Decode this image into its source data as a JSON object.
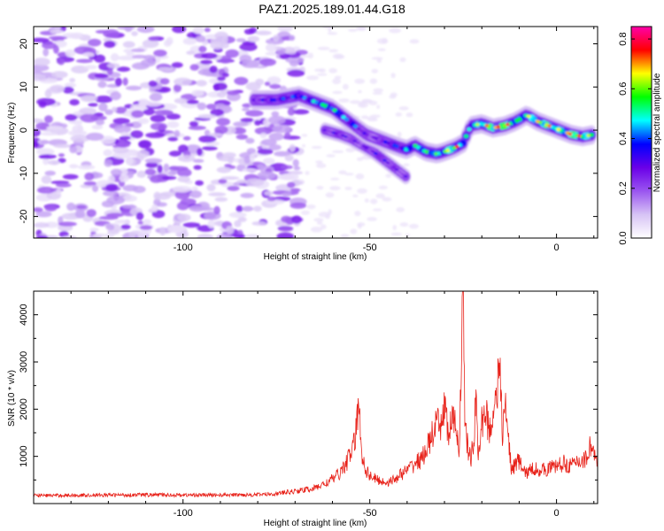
{
  "title": "PAZ1.2025.189.01.44.G18",
  "chart_data": [
    {
      "type": "heatmap",
      "xlabel": "Height of straight line (km)",
      "ylabel": "Frequency (Hz)",
      "xlim": [
        -140,
        11
      ],
      "ylim": [
        -25,
        24
      ],
      "xticks": [
        -100,
        -50,
        0
      ],
      "yticks": [
        -20,
        -10,
        0,
        10,
        20
      ],
      "xtick_labels": [
        "-100",
        "-50",
        "0"
      ],
      "ytick_labels": [
        "-20",
        "-10",
        "0",
        "10",
        "20"
      ],
      "colorbar": {
        "label": "Normalized spectral amplitude",
        "range": [
          0.0,
          0.85
        ],
        "ticks": [
          0.0,
          0.2,
          0.4,
          0.6,
          0.8
        ],
        "tick_labels": [
          "0.0",
          "0.2",
          "0.4",
          "0.6",
          "0.8"
        ],
        "colors": [
          "#ffffff",
          "#d7c3f5",
          "#9a55f0",
          "#6a00e8",
          "#0000ff",
          "#00ffff",
          "#00ff00",
          "#ffff00",
          "#ff0000",
          "#ff00aa"
        ]
      },
      "noise_region": {
        "x": [
          -140,
          -68
        ],
        "y": [
          -25,
          24
        ]
      },
      "ridge": {
        "x": [
          -81,
          -78,
          -75,
          -72,
          -69,
          -66,
          -63,
          -60,
          -57,
          -54,
          -51,
          -48,
          -45,
          -42,
          -40,
          -38,
          -35,
          -32,
          -30,
          -27,
          -25,
          -23,
          -20,
          -17,
          -14,
          -11,
          -8,
          -5,
          -2,
          1,
          4,
          7,
          10
        ],
        "y": [
          7,
          7,
          7,
          7.5,
          8,
          7,
          6,
          5,
          3,
          1,
          -1,
          -2,
          -3,
          -4,
          -4.5,
          -3.5,
          -5,
          -5.5,
          -5,
          -4,
          -3,
          1,
          1.5,
          0.5,
          1,
          2,
          3.5,
          2,
          1,
          0,
          -1,
          -1.5,
          -1
        ],
        "amplitude": [
          0.3,
          0.35,
          0.4,
          0.42,
          0.45,
          0.45,
          0.6,
          0.55,
          0.5,
          0.45,
          0.3,
          0.3,
          0.4,
          0.45,
          0.5,
          0.55,
          0.6,
          0.6,
          0.65,
          0.8,
          0.55,
          0.55,
          0.7,
          0.75,
          0.85,
          0.6,
          0.65,
          0.7,
          0.75,
          0.65,
          0.8,
          0.75,
          0.6
        ]
      },
      "branch": {
        "x": [
          -62,
          -58,
          -55,
          -52,
          -49,
          -46,
          -43,
          -40
        ],
        "y": [
          0,
          -1,
          -2,
          -3.5,
          -5,
          -7,
          -9,
          -11
        ],
        "amplitude": [
          0.3,
          0.35,
          0.3,
          0.3,
          0.35,
          0.35,
          0.3,
          0.3
        ]
      }
    },
    {
      "type": "line",
      "xlabel": "Height of straight line (km)",
      "ylabel": "SNR (10 * v/v)",
      "xlim": [
        -140,
        11
      ],
      "ylim": [
        0,
        4500
      ],
      "xticks": [
        -100,
        -50,
        0
      ],
      "yticks": [
        1000,
        2000,
        3000,
        4000
      ],
      "xtick_labels": [
        "-100",
        "-50",
        "0"
      ],
      "ytick_labels": [
        "1000",
        "2000",
        "3000",
        "4000"
      ],
      "color": "#e8221a",
      "series": [
        {
          "x": [
            -140,
            -130,
            -120,
            -110,
            -100,
            -90,
            -80,
            -75,
            -70,
            -65,
            -62,
            -60,
            -58,
            -56,
            -55,
            -54,
            -53,
            -52,
            -51,
            -50,
            -48,
            -46,
            -44,
            -42,
            -40,
            -38,
            -36,
            -34,
            -32,
            -31,
            -30,
            -29,
            -28,
            -27,
            -26,
            -25.5,
            -25,
            -24.5,
            -24,
            -23,
            -22,
            -21.5,
            -21,
            -20,
            -19,
            -18,
            -17,
            -16,
            -15,
            -14.5,
            -14,
            -13,
            -12,
            -11,
            -10,
            -9,
            -8,
            -6,
            -4,
            -2,
            0,
            2,
            4,
            6,
            8,
            9,
            10,
            11
          ],
          "y": [
            170,
            175,
            180,
            185,
            180,
            180,
            190,
            210,
            260,
            320,
            420,
            520,
            650,
            900,
            1100,
            1300,
            2080,
            1000,
            700,
            600,
            500,
            450,
            480,
            600,
            700,
            850,
            950,
            1300,
            1700,
            1550,
            2200,
            1400,
            1800,
            1600,
            1200,
            3000,
            4450,
            1700,
            1300,
            900,
            1450,
            2500,
            900,
            1700,
            2000,
            1500,
            1900,
            2500,
            2700,
            1300,
            2200,
            1500,
            700,
            850,
            900,
            700,
            650,
            750,
            700,
            750,
            800,
            850,
            800,
            900,
            950,
            1250,
            1100,
            750
          ]
        }
      ]
    }
  ]
}
